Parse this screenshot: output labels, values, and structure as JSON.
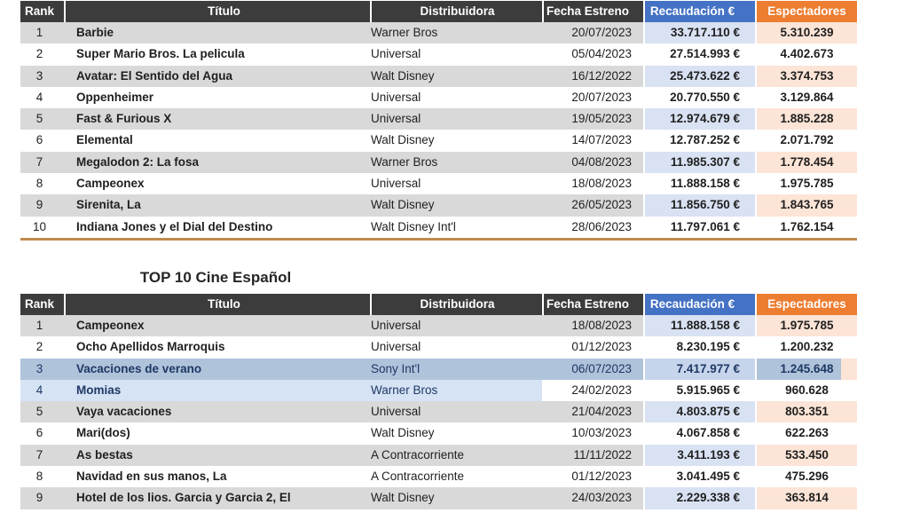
{
  "colors": {
    "header_dark": "#3C3C3C",
    "header_blue": "#4472C4",
    "header_orange": "#ED7D31",
    "band_gray": "#D9D9D9",
    "band_blue": "#D9E2F3",
    "band_peach": "#FCE4D6",
    "hl_steel": "#AFC3DB",
    "hl_steel_recaud": "#C6D5EC",
    "hl_light": "#D5E3F5",
    "navy": "#1F3864",
    "border_tan": "#C08A4E"
  },
  "tables": [
    {
      "headers": [
        "Rank",
        "Título",
        "Distribuidora",
        "Fecha Estreno",
        "Recaudación €",
        "Espectadores"
      ],
      "rows": [
        {
          "rank": "1",
          "title": "Barbie",
          "dist": "Warner Bros",
          "date": "20/07/2023",
          "gross": "33.717.110 €",
          "adm": "5.310.239"
        },
        {
          "rank": "2",
          "title": "Super Mario Bros. La pelicula",
          "dist": "Universal",
          "date": "05/04/2023",
          "gross": "27.514.993 €",
          "adm": "4.402.673"
        },
        {
          "rank": "3",
          "title": "Avatar: El Sentido del Agua",
          "dist": "Walt Disney",
          "date": "16/12/2022",
          "gross": "25.473.622 €",
          "adm": "3.374.753"
        },
        {
          "rank": "4",
          "title": "Oppenheimer",
          "dist": "Universal",
          "date": "20/07/2023",
          "gross": "20.770.550 €",
          "adm": "3.129.864"
        },
        {
          "rank": "5",
          "title": "Fast & Furious X",
          "dist": "Universal",
          "date": "19/05/2023",
          "gross": "12.974.679 €",
          "adm": "1.885.228"
        },
        {
          "rank": "6",
          "title": "Elemental",
          "dist": "Walt Disney",
          "date": "14/07/2023",
          "gross": "12.787.252 €",
          "adm": "2.071.792"
        },
        {
          "rank": "7",
          "title": "Megalodon 2: La fosa",
          "dist": "Warner Bros",
          "date": "04/08/2023",
          "gross": "11.985.307 €",
          "adm": "1.778.454"
        },
        {
          "rank": "8",
          "title": "Campeonex",
          "dist": "Universal",
          "date": "18/08/2023",
          "gross": "11.888.158 €",
          "adm": "1.975.785"
        },
        {
          "rank": "9",
          "title": "Sirenita, La",
          "dist": "Walt Disney",
          "date": "26/05/2023",
          "gross": "11.856.750 €",
          "adm": "1.843.765"
        },
        {
          "rank": "10",
          "title": "Indiana Jones y el Dial del Destino",
          "dist": "Walt Disney Int'l",
          "date": "28/06/2023",
          "gross": "11.797.061 €",
          "adm": "1.762.154"
        }
      ]
    },
    {
      "title": "TOP 10 Cine Español",
      "headers": [
        "Rank",
        "Título",
        "Distribuidora",
        "Fecha Estreno",
        "Recaudación €",
        "Espectadores"
      ],
      "rows": [
        {
          "rank": "1",
          "title": "Campeonex",
          "dist": "Universal",
          "date": "18/08/2023",
          "gross": "11.888.158 €",
          "adm": "1.975.785"
        },
        {
          "rank": "2",
          "title": "Ocho Apellidos Marroquis",
          "dist": "Universal",
          "date": "01/12/2023",
          "gross": "8.230.195 €",
          "adm": "1.200.232"
        },
        {
          "rank": "3",
          "title": "Vacaciones de verano",
          "dist": "Sony Int'l",
          "date": "06/07/2023",
          "gross": "7.417.977 €",
          "adm": "1.245.648",
          "hl": "steel"
        },
        {
          "rank": "4",
          "title": "Momias",
          "dist": "Warner Bros",
          "date": "24/02/2023",
          "gross": "5.915.965 €",
          "adm": "960.628",
          "hl": "light"
        },
        {
          "rank": "5",
          "title": "Vaya vacaciones",
          "dist": "Universal",
          "date": "21/04/2023",
          "gross": "4.803.875 €",
          "adm": "803.351"
        },
        {
          "rank": "6",
          "title": "Mari(dos)",
          "dist": "Walt Disney",
          "date": "10/03/2023",
          "gross": "4.067.858 €",
          "adm": "622.263"
        },
        {
          "rank": "7",
          "title": "As bestas",
          "dist": "A Contracorriente",
          "date": "11/11/2022",
          "gross": "3.411.193 €",
          "adm": "533.450"
        },
        {
          "rank": "8",
          "title": "Navidad en sus manos, La",
          "dist": "A Contracorriente",
          "date": "01/12/2023",
          "gross": "3.041.495 €",
          "adm": "475.296"
        },
        {
          "rank": "9",
          "title": "Hotel de los lios. Garcia y Garcia 2, El",
          "dist": "Walt Disney",
          "date": "24/03/2023",
          "gross": "2.229.338 €",
          "adm": "363.814"
        }
      ]
    }
  ]
}
